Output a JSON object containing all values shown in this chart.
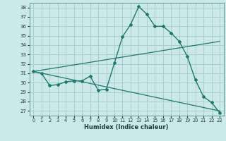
{
  "xlabel": "Humidex (Indice chaleur)",
  "bg_color": "#cce9e9",
  "grid_color": "#aacfcf",
  "line_color": "#1a7a6e",
  "xlim": [
    -0.5,
    23.5
  ],
  "ylim": [
    26.5,
    38.5
  ],
  "yticks": [
    27,
    28,
    29,
    30,
    31,
    32,
    33,
    34,
    35,
    36,
    37,
    38
  ],
  "xticks": [
    0,
    1,
    2,
    3,
    4,
    5,
    6,
    7,
    8,
    9,
    10,
    11,
    12,
    13,
    14,
    15,
    16,
    17,
    18,
    19,
    20,
    21,
    22,
    23
  ],
  "series1_x": [
    0,
    1,
    2,
    3,
    4,
    5,
    6,
    7,
    8,
    9,
    10,
    11,
    12,
    13,
    14,
    15,
    16,
    17,
    18,
    19,
    20,
    21,
    22,
    23
  ],
  "series1_y": [
    31.2,
    31.0,
    29.7,
    29.8,
    30.1,
    30.2,
    30.2,
    30.7,
    29.2,
    29.3,
    32.1,
    34.9,
    36.2,
    38.1,
    37.3,
    36.0,
    36.0,
    35.3,
    34.4,
    32.8,
    30.3,
    28.5,
    27.9,
    26.8
  ],
  "series2_x": [
    0,
    23
  ],
  "series2_y": [
    31.2,
    34.4
  ],
  "series3_x": [
    0,
    23
  ],
  "series3_y": [
    31.2,
    27.0
  ]
}
